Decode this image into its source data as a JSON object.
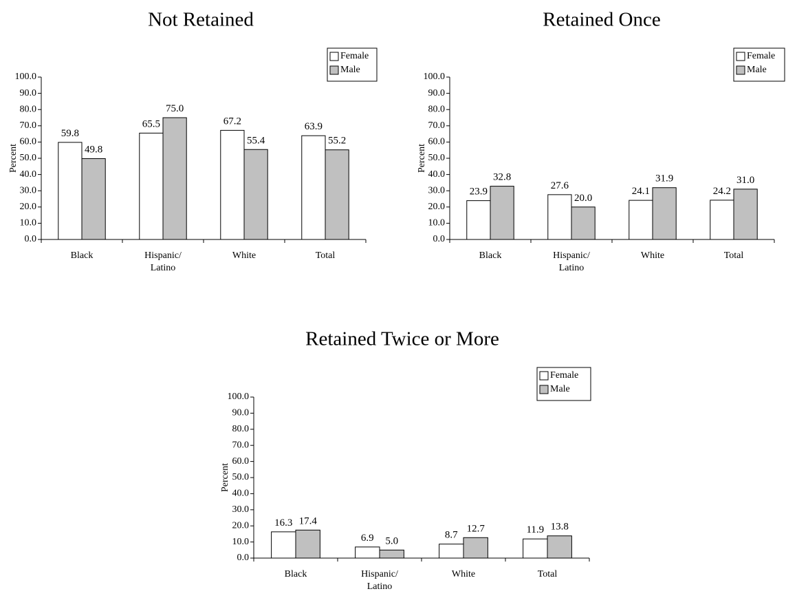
{
  "colors": {
    "female": "#ffffff",
    "male": "#c0c0c0",
    "stroke": "#000000"
  },
  "chart_data": [
    {
      "type": "bar",
      "title": "Not Retained",
      "xlabel": "",
      "ylabel": "Percent",
      "ylim": [
        0,
        100
      ],
      "yticks": [
        "0.0",
        "10.0",
        "20.0",
        "30.0",
        "40.0",
        "50.0",
        "60.0",
        "70.0",
        "80.0",
        "90.0",
        "100.0"
      ],
      "categories": [
        [
          "Black"
        ],
        [
          "Hispanic/",
          "Latino"
        ],
        [
          "White"
        ],
        [
          "Total"
        ]
      ],
      "series": [
        {
          "name": "Female",
          "values": [
            59.8,
            65.5,
            67.2,
            63.9
          ],
          "labels": [
            "59.8",
            "65.5",
            "67.2",
            "63.9"
          ]
        },
        {
          "name": "Male",
          "values": [
            49.8,
            75.0,
            55.4,
            55.2
          ],
          "labels": [
            "49.8",
            "75.0",
            "55.4",
            "55.2"
          ]
        }
      ],
      "legend": "top-right",
      "grid": false
    },
    {
      "type": "bar",
      "title": "Retained Once",
      "xlabel": "",
      "ylabel": "Percent",
      "ylim": [
        0,
        100
      ],
      "yticks": [
        "0.0",
        "10.0",
        "20.0",
        "30.0",
        "40.0",
        "50.0",
        "60.0",
        "70.0",
        "80.0",
        "90.0",
        "100.0"
      ],
      "categories": [
        [
          "Black"
        ],
        [
          "Hispanic/",
          "Latino"
        ],
        [
          "White"
        ],
        [
          "Total"
        ]
      ],
      "series": [
        {
          "name": "Female",
          "values": [
            23.9,
            27.6,
            24.1,
            24.2
          ],
          "labels": [
            "23.9",
            "27.6",
            "24.1",
            "24.2"
          ]
        },
        {
          "name": "Male",
          "values": [
            32.8,
            20.0,
            31.9,
            31.0
          ],
          "labels": [
            "32.8",
            "20.0",
            "31.9",
            "31.0"
          ]
        }
      ],
      "legend": "top-right",
      "grid": false
    },
    {
      "type": "bar",
      "title": "Retained Twice or More",
      "xlabel": "",
      "ylabel": "Percent",
      "ylim": [
        0,
        100
      ],
      "yticks": [
        "0.0",
        "10.0",
        "20.0",
        "30.0",
        "40.0",
        "50.0",
        "60.0",
        "70.0",
        "80.0",
        "90.0",
        "100.0"
      ],
      "categories": [
        [
          "Black"
        ],
        [
          "Hispanic/",
          "Latino"
        ],
        [
          "White"
        ],
        [
          "Total"
        ]
      ],
      "series": [
        {
          "name": "Female",
          "values": [
            16.3,
            6.9,
            8.7,
            11.9
          ],
          "labels": [
            "16.3",
            "6.9",
            "8.7",
            "11.9"
          ]
        },
        {
          "name": "Male",
          "values": [
            17.4,
            5.0,
            12.7,
            13.8
          ],
          "labels": [
            "17.4",
            "5.0",
            "12.7",
            "13.8"
          ]
        }
      ],
      "legend": "top-right",
      "grid": false
    }
  ]
}
